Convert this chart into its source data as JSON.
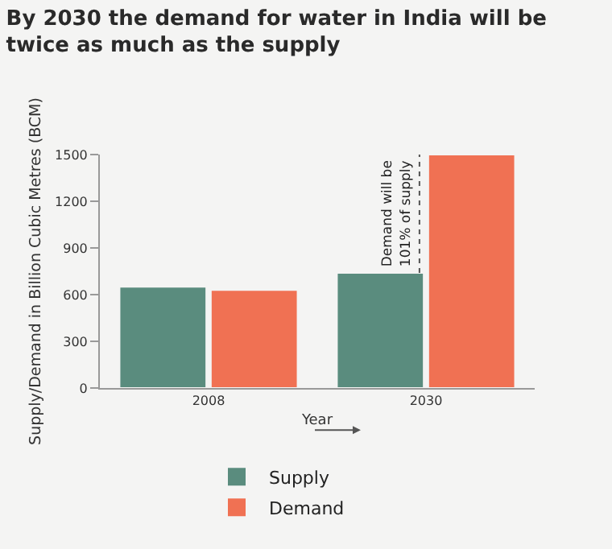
{
  "chart_data": {
    "type": "bar",
    "title": "By 2030 the demand for water in India will be twice as much as the supply",
    "xlabel": "Year",
    "ylabel": "Supply/Demand in Billion Cubic Metres (BCM)",
    "categories": [
      "2008",
      "2030"
    ],
    "series": [
      {
        "name": "Supply",
        "color": "#5a8c7e",
        "values": [
          650,
          740
        ]
      },
      {
        "name": "Demand",
        "color": "#f07153",
        "values": [
          630,
          1500
        ]
      }
    ],
    "ylim": [
      0,
      1500
    ],
    "yticks": [
      0,
      300,
      600,
      900,
      1200,
      1500
    ],
    "grid": false,
    "legend": "bottom",
    "annotations": [
      {
        "text": "Demand will be 101% of supply",
        "x": "2030",
        "y": 1120
      }
    ]
  }
}
